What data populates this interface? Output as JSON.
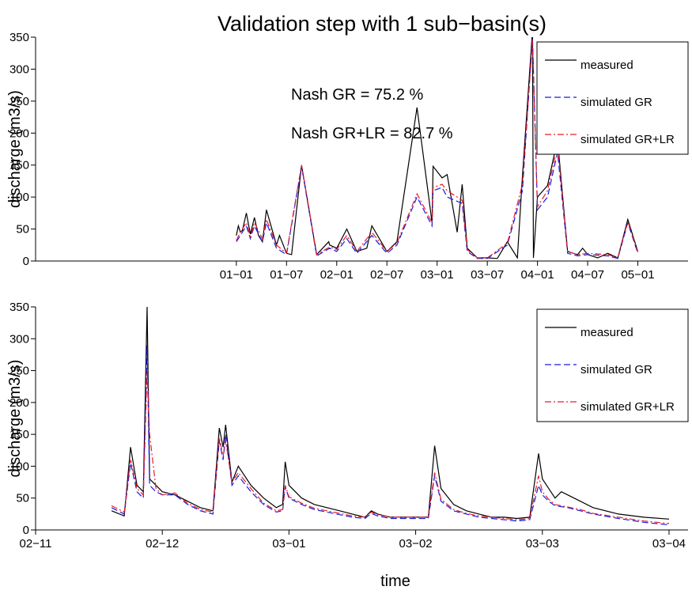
{
  "chart_data": [
    {
      "type": "line",
      "title": "Validation step with 1 sub−basin(s)",
      "xlabel": "",
      "ylabel": "discharge (m3/s)",
      "ylim": [
        0,
        350
      ],
      "yticks": [
        0,
        50,
        100,
        150,
        200,
        250,
        300,
        350
      ],
      "xticks": [
        {
          "x": 2.5,
          "label": "01−01"
        },
        {
          "x": 3.0,
          "label": "01−07"
        },
        {
          "x": 3.5,
          "label": "02−01"
        },
        {
          "x": 4.0,
          "label": "02−07"
        },
        {
          "x": 4.5,
          "label": "03−01"
        },
        {
          "x": 5.0,
          "label": "03−07"
        },
        {
          "x": 5.5,
          "label": "04−01"
        },
        {
          "x": 6.0,
          "label": "04−07"
        },
        {
          "x": 6.5,
          "label": "05−01"
        }
      ],
      "xlim": [
        0.5,
        7.0
      ],
      "annotations": [
        "Nash GR = 75.2 %",
        "Nash GR+LR = 82.7 %"
      ],
      "legend": {
        "position": "top-right",
        "entries": [
          "measured",
          "simulated GR",
          "simulated GR+LR"
        ]
      },
      "colors": {
        "measured": "#000000",
        "simulated GR": "#1a1adf",
        "simulated GR+LR": "#e81c2b"
      },
      "series": [
        {
          "name": "measured",
          "x": [
            2.5,
            2.52,
            2.54,
            2.56,
            2.6,
            2.64,
            2.68,
            2.72,
            2.76,
            2.8,
            2.9,
            2.93,
            3.0,
            3.05,
            3.15,
            3.3,
            3.42,
            3.43,
            3.5,
            3.6,
            3.7,
            3.8,
            3.85,
            4.0,
            4.1,
            4.3,
            4.45,
            4.46,
            4.55,
            4.6,
            4.7,
            4.75,
            4.8,
            4.9,
            5.0,
            5.1,
            5.2,
            5.3,
            5.35,
            5.45,
            5.46,
            5.5,
            5.6,
            5.7,
            5.8,
            5.9,
            5.95,
            6.0,
            6.1,
            6.2,
            6.3,
            6.4,
            6.5
          ],
          "y": [
            40,
            55,
            45,
            48,
            75,
            42,
            68,
            40,
            30,
            80,
            25,
            40,
            12,
            10,
            150,
            10,
            30,
            25,
            20,
            50,
            15,
            20,
            55,
            15,
            30,
            240,
            60,
            148,
            130,
            135,
            45,
            120,
            20,
            5,
            5,
            4,
            30,
            5,
            133,
            360,
            5,
            100,
            118,
            190,
            15,
            10,
            20,
            10,
            5,
            12,
            5,
            65,
            15
          ]
        },
        {
          "name": "simulated GR",
          "x": [
            2.5,
            2.54,
            2.6,
            2.64,
            2.68,
            2.76,
            2.8,
            2.9,
            3.0,
            3.15,
            3.3,
            3.43,
            3.5,
            3.6,
            3.7,
            3.85,
            4.0,
            4.1,
            4.3,
            4.45,
            4.46,
            4.55,
            4.6,
            4.75,
            4.8,
            4.9,
            5.0,
            5.2,
            5.35,
            5.45,
            5.5,
            5.6,
            5.7,
            5.8,
            5.9,
            6.0,
            6.2,
            6.3,
            6.4,
            6.5
          ],
          "y": [
            30,
            40,
            55,
            35,
            55,
            30,
            60,
            20,
            10,
            148,
            8,
            20,
            15,
            35,
            12,
            40,
            12,
            25,
            100,
            55,
            110,
            115,
            100,
            90,
            15,
            4,
            4,
            25,
            110,
            350,
            80,
            100,
            170,
            12,
            8,
            10,
            8,
            4,
            60,
            12
          ]
        },
        {
          "name": "simulated GR+LR",
          "x": [
            2.5,
            2.54,
            2.6,
            2.64,
            2.68,
            2.76,
            2.8,
            2.9,
            3.0,
            3.15,
            3.3,
            3.43,
            3.5,
            3.6,
            3.7,
            3.85,
            4.0,
            4.1,
            4.3,
            4.45,
            4.46,
            4.55,
            4.6,
            4.75,
            4.8,
            4.9,
            5.0,
            5.2,
            5.35,
            5.45,
            5.5,
            5.6,
            5.7,
            5.8,
            5.9,
            6.0,
            6.2,
            6.3,
            6.4,
            6.5
          ],
          "y": [
            32,
            45,
            60,
            38,
            60,
            35,
            65,
            25,
            12,
            150,
            10,
            22,
            18,
            40,
            15,
            45,
            15,
            28,
            105,
            60,
            115,
            120,
            110,
            95,
            18,
            5,
            5,
            28,
            120,
            345,
            85,
            110,
            180,
            15,
            10,
            12,
            10,
            5,
            62,
            14
          ]
        }
      ]
    },
    {
      "type": "line",
      "title": "",
      "xlabel": "time",
      "ylabel": "discharge (m3/s)",
      "ylim": [
        0,
        350
      ],
      "yticks": [
        0,
        50,
        100,
        150,
        200,
        250,
        300,
        350
      ],
      "xticks": [
        {
          "x": 0,
          "label": "02−11"
        },
        {
          "x": 1,
          "label": "02−12"
        },
        {
          "x": 2,
          "label": "03−01"
        },
        {
          "x": 3,
          "label": "03−02"
        },
        {
          "x": 4,
          "label": "03−03"
        },
        {
          "x": 5,
          "label": "03−04"
        }
      ],
      "xlim": [
        0,
        5.15
      ],
      "legend": {
        "position": "top-right",
        "entries": [
          "measured",
          "simulated GR",
          "simulated GR+LR"
        ]
      },
      "colors": {
        "measured": "#000000",
        "simulated GR": "#1a1adf",
        "simulated GR+LR": "#e81c2b"
      },
      "series": [
        {
          "name": "measured",
          "x": [
            0.6,
            0.7,
            0.75,
            0.8,
            0.85,
            0.88,
            0.9,
            0.95,
            1.0,
            1.1,
            1.2,
            1.3,
            1.4,
            1.45,
            1.48,
            1.5,
            1.55,
            1.6,
            1.7,
            1.8,
            1.9,
            1.95,
            1.97,
            2.0,
            2.1,
            2.2,
            2.3,
            2.4,
            2.5,
            2.6,
            2.65,
            2.7,
            2.8,
            2.9,
            3.0,
            3.1,
            3.15,
            3.2,
            3.3,
            3.4,
            3.5,
            3.6,
            3.7,
            3.8,
            3.9,
            3.97,
            4.0,
            4.05,
            4.1,
            4.15,
            4.2,
            4.3,
            4.4,
            4.6,
            4.8,
            5.0
          ],
          "y": [
            30,
            22,
            130,
            70,
            60,
            350,
            80,
            70,
            60,
            55,
            45,
            35,
            30,
            160,
            130,
            165,
            75,
            100,
            70,
            50,
            35,
            40,
            107,
            70,
            50,
            40,
            35,
            30,
            25,
            20,
            30,
            25,
            20,
            20,
            20,
            20,
            132,
            65,
            40,
            30,
            25,
            20,
            20,
            18,
            20,
            120,
            80,
            65,
            50,
            60,
            55,
            45,
            35,
            25,
            20,
            17
          ]
        },
        {
          "name": "simulated GR",
          "x": [
            0.6,
            0.7,
            0.75,
            0.8,
            0.85,
            0.88,
            0.9,
            0.95,
            1.0,
            1.1,
            1.2,
            1.3,
            1.4,
            1.45,
            1.48,
            1.5,
            1.55,
            1.6,
            1.7,
            1.8,
            1.9,
            1.95,
            1.97,
            2.0,
            2.1,
            2.2,
            2.3,
            2.4,
            2.5,
            2.6,
            2.65,
            2.7,
            2.8,
            2.9,
            3.0,
            3.1,
            3.15,
            3.2,
            3.3,
            3.4,
            3.5,
            3.6,
            3.7,
            3.8,
            3.9,
            3.97,
            4.0,
            4.05,
            4.1,
            4.2,
            4.3,
            4.4,
            4.6,
            4.8,
            5.0
          ],
          "y": [
            35,
            25,
            105,
            60,
            50,
            290,
            70,
            60,
            55,
            55,
            40,
            30,
            25,
            140,
            110,
            150,
            70,
            85,
            60,
            40,
            28,
            30,
            68,
            50,
            40,
            32,
            28,
            24,
            20,
            18,
            26,
            22,
            18,
            18,
            18,
            18,
            85,
            45,
            30,
            25,
            20,
            18,
            16,
            14,
            16,
            70,
            55,
            45,
            38,
            35,
            30,
            25,
            18,
            12,
            8
          ]
        },
        {
          "name": "simulated GR+LR",
          "x": [
            0.6,
            0.7,
            0.75,
            0.8,
            0.85,
            0.88,
            0.9,
            0.95,
            1.0,
            1.1,
            1.2,
            1.3,
            1.4,
            1.45,
            1.48,
            1.5,
            1.55,
            1.6,
            1.7,
            1.8,
            1.9,
            1.95,
            1.97,
            2.0,
            2.1,
            2.2,
            2.3,
            2.4,
            2.5,
            2.6,
            2.65,
            2.7,
            2.8,
            2.9,
            3.0,
            3.1,
            3.15,
            3.2,
            3.3,
            3.4,
            3.5,
            3.6,
            3.7,
            3.8,
            3.9,
            3.97,
            4.0,
            4.05,
            4.1,
            4.2,
            4.3,
            4.4,
            4.6,
            4.8,
            5.0
          ],
          "y": [
            38,
            28,
            110,
            65,
            55,
            250,
            150,
            65,
            55,
            58,
            42,
            32,
            28,
            145,
            115,
            140,
            75,
            90,
            65,
            42,
            30,
            32,
            70,
            52,
            42,
            34,
            30,
            26,
            22,
            20,
            28,
            24,
            20,
            20,
            20,
            20,
            90,
            48,
            32,
            26,
            22,
            20,
            18,
            16,
            18,
            85,
            60,
            48,
            40,
            36,
            32,
            26,
            20,
            14,
            10
          ]
        }
      ]
    }
  ]
}
